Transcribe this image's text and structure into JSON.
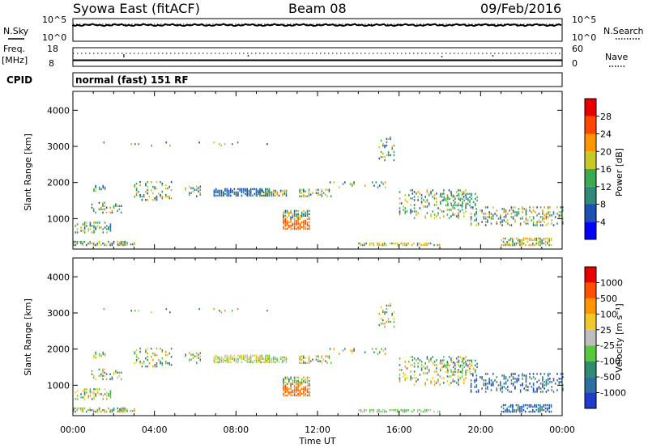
{
  "header": {
    "station": "Syowa East (fitACF)",
    "beam": "Beam 08",
    "date": "09/Feb/2016"
  },
  "top_panels": {
    "nsky_label": "N.Sky",
    "nsky_ticks": [
      "10^5",
      "10^0"
    ],
    "nsearch_label": "N.Search",
    "nsearch_ticks": [
      "10^5",
      "10^0"
    ],
    "freq_label": "Freq.",
    "freq_unit": "[MHz]",
    "freq_ticks": [
      "18",
      "8"
    ],
    "nave_label": "Nave",
    "nave_ticks": [
      "60",
      "0"
    ],
    "cpid_label": "CPID",
    "cpid_text": "normal (fast) 151 RF"
  },
  "chart_data": [
    {
      "type": "heatmap",
      "name": "power",
      "ylabel": "Slant Range [km]",
      "y_ticks": [
        "1000",
        "2000",
        "3000",
        "4000"
      ],
      "y_tick_values": [
        1000,
        2000,
        3000,
        4000
      ],
      "ylim": [
        180,
        4500
      ],
      "xlim_hours": [
        0,
        24
      ],
      "colorbar_label": "Power [dB]",
      "colorbar_ticks": [
        "4",
        "8",
        "12",
        "16",
        "20",
        "24",
        "28"
      ],
      "colors": [
        "#0000ff",
        "#1e50b4",
        "#2f8a7a",
        "#3caa50",
        "#c8c828",
        "#ff9600",
        "#ff4600",
        "#e60000"
      ]
    },
    {
      "type": "heatmap",
      "name": "velocity",
      "ylabel": "Slant Range [km]",
      "y_ticks": [
        "1000",
        "2000",
        "3000",
        "4000"
      ],
      "y_tick_values": [
        1000,
        2000,
        3000,
        4000
      ],
      "ylim": [
        180,
        4500
      ],
      "xlim_hours": [
        0,
        24
      ],
      "colorbar_label": "Velocity [m s⁻¹]",
      "colorbar_ticks": [
        "1000",
        "500",
        "100",
        "25",
        "-25",
        "-100",
        "-500",
        "-1000"
      ],
      "colors": [
        "#1e3cc8",
        "#2f6ea0",
        "#2f8c6e",
        "#5ac83c",
        "#bebebe",
        "#f0c828",
        "#ff9600",
        "#ff5000",
        "#e60000"
      ]
    }
  ],
  "x_axis": {
    "ticks": [
      "00:00",
      "04:00",
      "08:00",
      "12:00",
      "16:00",
      "20:00",
      "00:00"
    ],
    "label": "Time UT"
  }
}
